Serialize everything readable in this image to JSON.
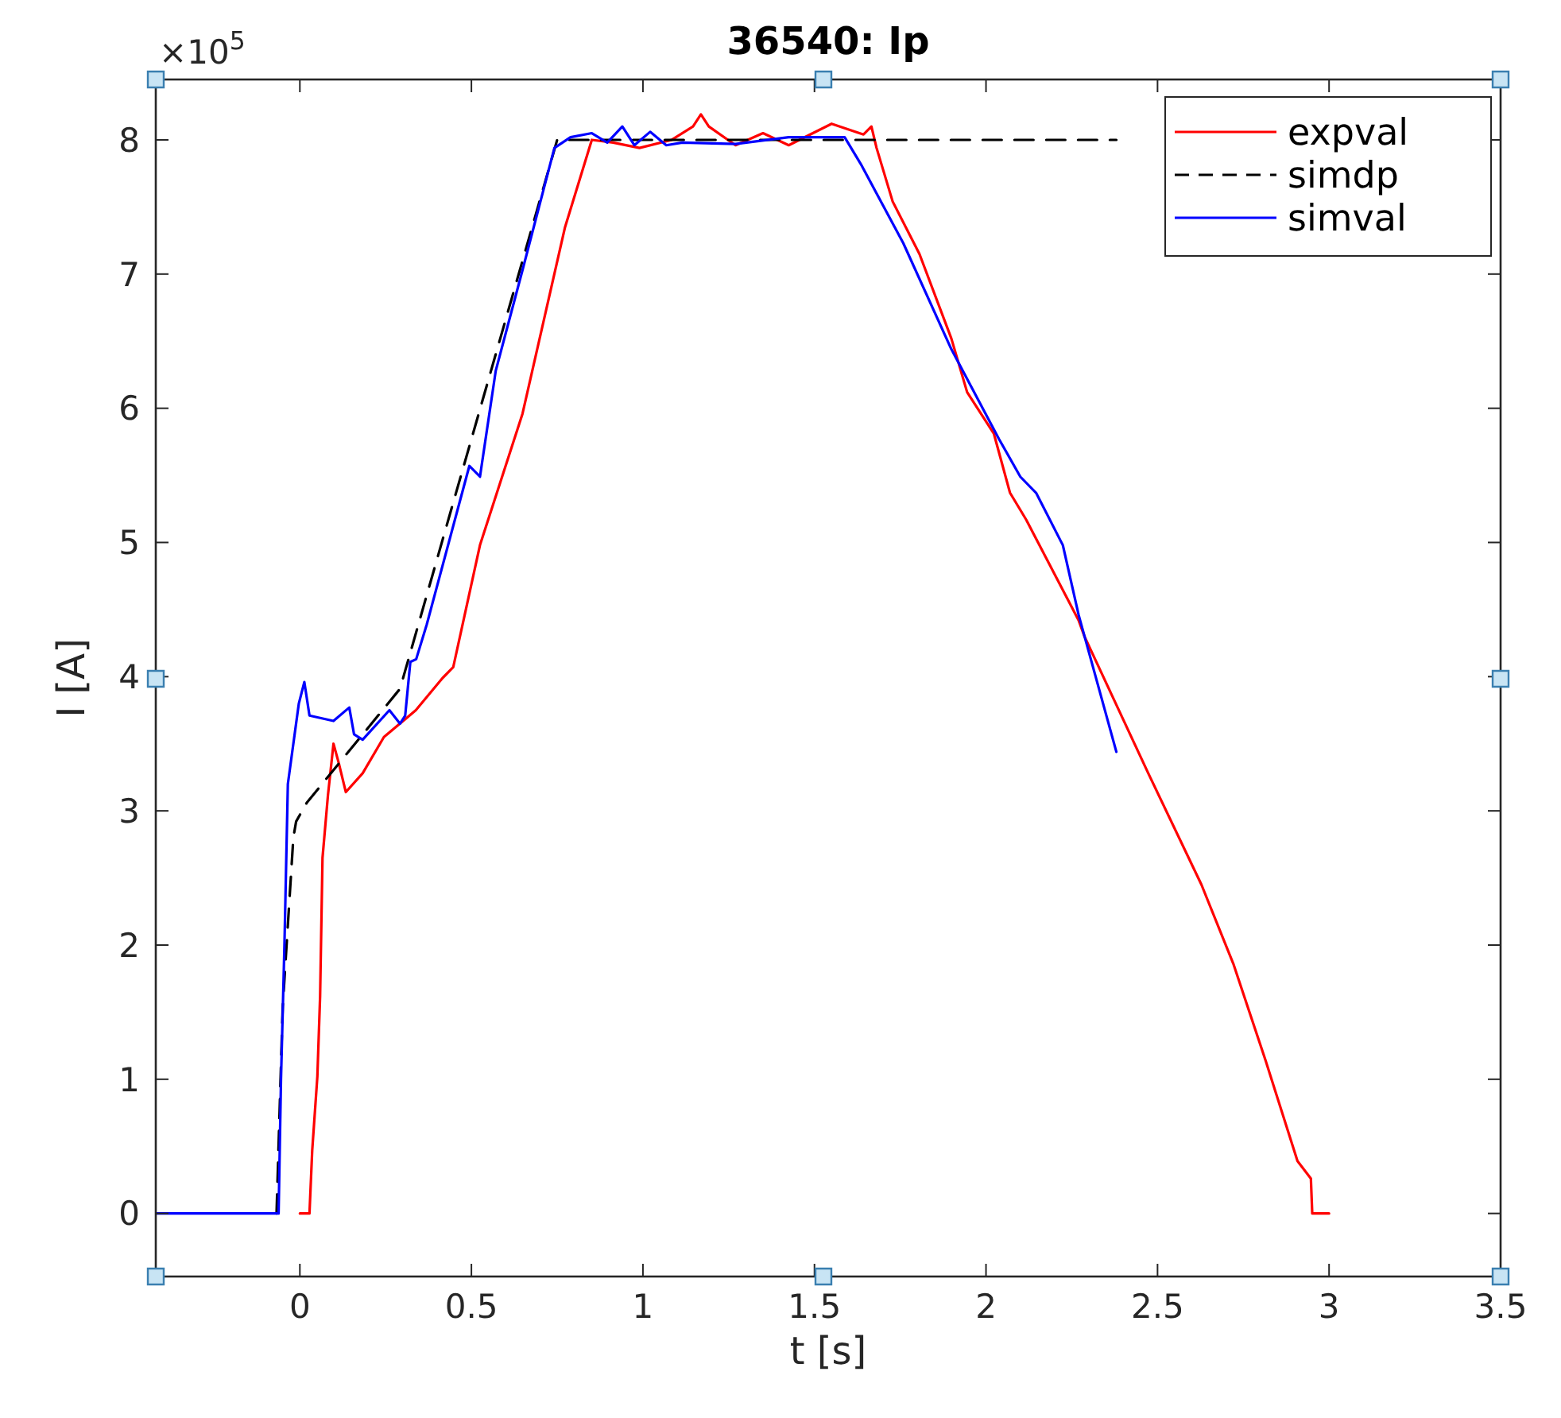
{
  "chart_data": {
    "type": "line",
    "title": "36540: Ip",
    "xlabel": "t [s]",
    "ylabel": "I [A]",
    "annotations": [
      "×10$^{5}$"
    ],
    "xlim": [
      -0.42,
      3.5
    ],
    "ylim": [
      -0.47,
      8.45
    ],
    "xticks": [
      0,
      0.5,
      1,
      1.5,
      2,
      2.5,
      3,
      3.5
    ],
    "yticks": [
      0,
      1,
      2,
      3,
      4,
      5,
      6,
      7,
      8
    ],
    "grid": false,
    "legend": "top right",
    "series": [
      {
        "name": "expval",
        "color": "#ff0000",
        "line_style": "solid",
        "x": [
          0,
          0.028,
          0.036,
          0.051,
          0.059,
          0.066,
          0.082,
          0.098,
          0.113,
          0.134,
          0.183,
          0.245,
          0.338,
          0.416,
          0.447,
          0.525,
          0.649,
          0.773,
          0.851,
          0.913,
          0.99,
          1.084,
          1.146,
          1.169,
          1.192,
          1.27,
          1.35,
          1.425,
          1.55,
          1.643,
          1.666,
          1.681,
          1.728,
          1.806,
          1.899,
          1.945,
          2.023,
          2.07,
          2.117,
          2.27,
          2.287,
          2.473,
          2.628,
          2.721,
          2.815,
          2.908,
          2.947,
          2.951,
          3.0
        ],
        "values": [
          0,
          0,
          0.47,
          1.02,
          1.62,
          2.65,
          3.12,
          3.5,
          3.36,
          3.14,
          3.28,
          3.55,
          3.75,
          3.99,
          4.07,
          4.98,
          5.96,
          7.35,
          8.0,
          7.98,
          7.94,
          8.0,
          8.1,
          8.19,
          8.1,
          7.96,
          8.05,
          7.96,
          8.12,
          8.04,
          8.1,
          7.94,
          7.54,
          7.15,
          6.52,
          6.12,
          5.81,
          5.37,
          5.17,
          4.42,
          4.3,
          3.28,
          2.45,
          1.86,
          1.14,
          0.39,
          0.26,
          0,
          0
        ]
      },
      {
        "name": "simdp",
        "color": "#000000",
        "line_style": "dashed",
        "x": [
          -0.068,
          -0.05,
          -0.019,
          -0.011,
          0.02,
          0.292,
          0.416,
          0.75,
          2.38
        ],
        "values": [
          0,
          1.54,
          2.8,
          2.92,
          3.06,
          3.91,
          5.02,
          8,
          8
        ]
      },
      {
        "name": "simval",
        "color": "#0000ff",
        "line_style": "solid",
        "x": [
          -0.42,
          -0.062,
          -0.055,
          -0.045,
          -0.035,
          -0.003,
          0.013,
          0.028,
          0.098,
          0.144,
          0.158,
          0.183,
          0.261,
          0.292,
          0.307,
          0.322,
          0.339,
          0.37,
          0.494,
          0.525,
          0.571,
          0.649,
          0.742,
          0.789,
          0.851,
          0.896,
          0.94,
          0.975,
          1.021,
          1.068,
          1.115,
          1.27,
          1.425,
          1.565,
          1.588,
          1.635,
          1.759,
          1.899,
          2.038,
          2.1,
          2.146,
          2.224,
          2.27,
          2.38
        ],
        "values": [
          0,
          0,
          1.0,
          2.0,
          3.2,
          3.8,
          3.96,
          3.71,
          3.67,
          3.77,
          3.57,
          3.53,
          3.75,
          3.65,
          3.71,
          4.11,
          4.13,
          4.39,
          5.57,
          5.49,
          6.28,
          7.03,
          7.94,
          8.02,
          8.05,
          7.98,
          8.1,
          7.96,
          8.06,
          7.96,
          7.98,
          7.97,
          8.02,
          8.02,
          8.02,
          7.82,
          7.23,
          6.44,
          5.77,
          5.49,
          5.37,
          4.98,
          4.46,
          3.44
        ]
      }
    ]
  }
}
